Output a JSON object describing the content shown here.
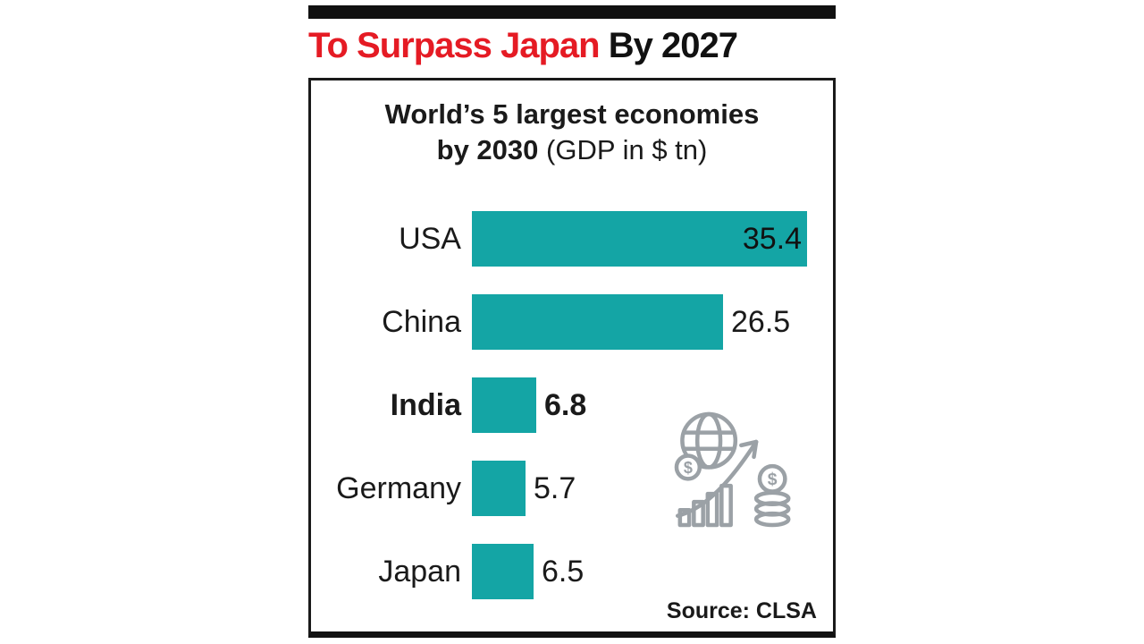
{
  "page": {
    "title_red": "To Surpass Japan",
    "title_black": " By 2027",
    "source": "Source: CLSA"
  },
  "chart_data": {
    "type": "bar",
    "orientation": "horizontal",
    "title_line1": "World’s 5 largest economies",
    "title_line2_bold": "by 2030",
    "title_line2_regular": "(GDP in $ tn)",
    "categories": [
      "USA",
      "China",
      "India",
      "Germany",
      "Japan"
    ],
    "values": [
      35.4,
      26.5,
      6.8,
      5.7,
      6.5
    ],
    "highlight_category": "India",
    "xlim": [
      0,
      35.4
    ],
    "bar_color": "#14a5a5",
    "value_inside_bar": [
      "USA"
    ],
    "legend": "none",
    "grid": "off",
    "source": "Source: CLSA"
  },
  "icons": {
    "growth_icon": "globe-dollar-arrow-growth-icon"
  },
  "colors": {
    "accent_teal": "#14a5a5",
    "title_red": "#e51b24",
    "ink": "#111111"
  }
}
